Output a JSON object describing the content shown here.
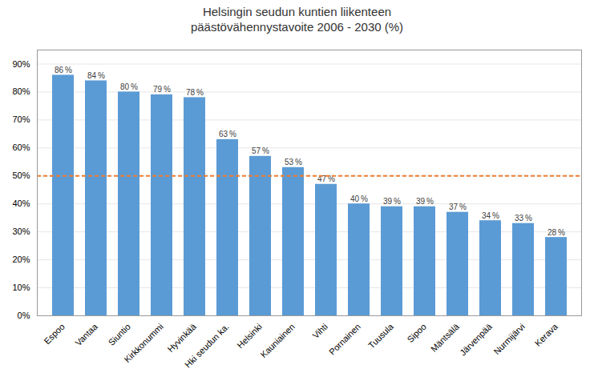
{
  "chart_data": {
    "type": "bar",
    "title": "Helsingin seudun kuntien liikenteen\npäästövähennystavoite 2006 - 2030 (%)",
    "categories": [
      "Espoo",
      "Vantaa",
      "Siuntio",
      "Kirkkonummi",
      "Hyvinkää",
      "Hki seudun ka.",
      "Helsinki",
      "Kauniainen",
      "Vihti",
      "Pornainen",
      "Tuusula",
      "Sipoo",
      "Mäntsälä",
      "Järvenpää",
      "Nurmijärvi",
      "Kerava"
    ],
    "values": [
      86,
      84,
      80,
      79,
      78,
      63,
      57,
      53,
      47,
      40,
      39,
      39,
      37,
      34,
      33,
      28
    ],
    "value_labels": [
      "86 %",
      "84 %",
      "80 %",
      "79 %",
      "78 %",
      "63 %",
      "57 %",
      "53 %",
      "47 %",
      "40 %",
      "39 %",
      "39 %",
      "37 %",
      "34 %",
      "33 %",
      "28 %"
    ],
    "data_labels": true,
    "color": "#5B9BD5",
    "reference_line": {
      "value": 50,
      "color": "#ED7D31",
      "line_style": "dashed"
    },
    "ylim": [
      0,
      95
    ],
    "yticks": [
      {
        "value": 0,
        "label": "0%"
      },
      {
        "value": 10,
        "label": "10%"
      },
      {
        "value": 20,
        "label": "20%"
      },
      {
        "value": 30,
        "label": "30%"
      },
      {
        "value": 40,
        "label": "40%"
      },
      {
        "value": 50,
        "label": "50%"
      },
      {
        "value": 60,
        "label": "60%"
      },
      {
        "value": 70,
        "label": "70%"
      },
      {
        "value": 80,
        "label": "80%"
      },
      {
        "value": 90,
        "label": "90%"
      }
    ],
    "grid": true
  }
}
